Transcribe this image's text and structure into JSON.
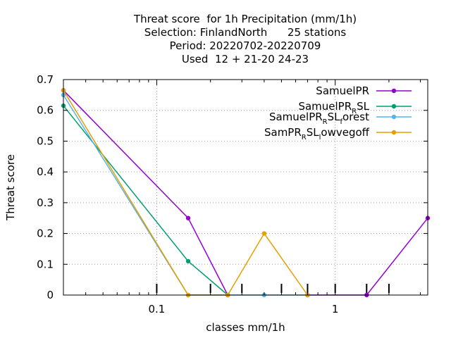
{
  "chart_data": {
    "type": "line",
    "title_lines": [
      "Threat score  for 1h Precipitation (mm/1h)",
      "Selection: FinlandNorth      25 stations",
      "Period: 20220702-20220709",
      "Used  12 + 21-20 24-23"
    ],
    "xlabel": "classes mm/1h",
    "ylabel": "Threat score",
    "x_scale": "log",
    "xlim": [
      0.03,
      3.3
    ],
    "ylim": [
      0,
      0.7
    ],
    "x_tick_labels": [
      {
        "value": 0.1,
        "label": "0.1"
      },
      {
        "value": 1,
        "label": "1"
      }
    ],
    "y_ticks": [
      {
        "value": 0,
        "label": "0"
      },
      {
        "value": 0.1,
        "label": "0.1"
      },
      {
        "value": 0.2,
        "label": "0.2"
      },
      {
        "value": 0.3,
        "label": "0.3"
      },
      {
        "value": 0.4,
        "label": "0.4"
      },
      {
        "value": 0.5,
        "label": "0.5"
      },
      {
        "value": 0.6,
        "label": "0.6"
      },
      {
        "value": 0.7,
        "label": "0.7"
      }
    ],
    "class_marks": [
      0.1,
      0.2,
      0.3,
      0.5,
      0.7,
      1,
      1.5,
      2
    ],
    "grid": true,
    "legend_position": "top-right",
    "x": [
      0.03,
      0.15,
      0.25,
      0.4,
      0.7,
      1.5,
      3.3
    ],
    "series": [
      {
        "name_parts": [
          {
            "t": "SamuelPR",
            "sub": false
          }
        ],
        "color": "#9400d3",
        "values": [
          0.665,
          0.25,
          0.0,
          null,
          0.0,
          0.0,
          0.25
        ]
      },
      {
        "name_parts": [
          {
            "t": "SamuelPR",
            "sub": false
          },
          {
            "t": "R",
            "sub": true
          },
          {
            "t": "SL",
            "sub": false
          }
        ],
        "color": "#009e73",
        "values": [
          0.615,
          0.11,
          0.0,
          null,
          null,
          null,
          null
        ]
      },
      {
        "name_parts": [
          {
            "t": "SamuelPR",
            "sub": false
          },
          {
            "t": "R",
            "sub": true
          },
          {
            "t": "SL",
            "sub": false
          },
          {
            "t": "f",
            "sub": true
          },
          {
            "t": "orest",
            "sub": false
          }
        ],
        "color": "#56b4e9",
        "values": [
          0.65,
          0.0,
          0.0,
          0.0,
          0.0,
          null,
          null
        ]
      },
      {
        "name_parts": [
          {
            "t": "SamPR",
            "sub": false
          },
          {
            "t": "R",
            "sub": true
          },
          {
            "t": "SL",
            "sub": false
          },
          {
            "t": "l",
            "sub": true
          },
          {
            "t": "owvegoff",
            "sub": false
          }
        ],
        "color": "#e69f00",
        "values": [
          0.665,
          0.0,
          0.0,
          0.2,
          0.0,
          null,
          null
        ]
      }
    ]
  }
}
